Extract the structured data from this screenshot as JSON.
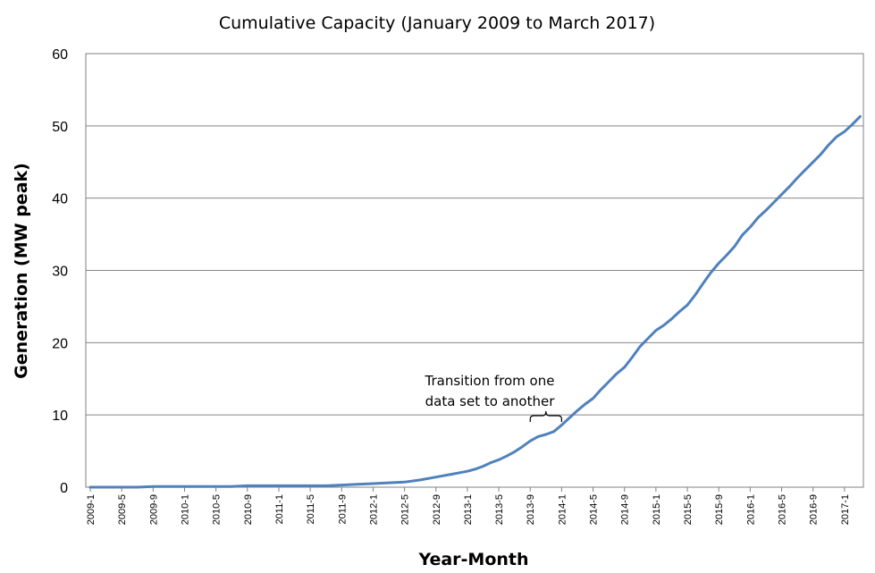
{
  "chart_data": {
    "type": "line",
    "title": "Cumulative Capacity (January 2009 to March 2017)",
    "xlabel": "Year-Month",
    "ylabel": "Generation (MW peak)",
    "ylim": [
      0,
      60
    ],
    "yticks": [
      0,
      10,
      20,
      30,
      40,
      50,
      60
    ],
    "grid": "horizontal",
    "xtick_labels": [
      "2009-1",
      "2009-5",
      "2009-9",
      "2010-1",
      "2010-5",
      "2010-9",
      "2011-1",
      "2011-5",
      "2011-9",
      "2012-1",
      "2012-5",
      "2012-9",
      "2013-1",
      "2013-5",
      "2013-9",
      "2014-1",
      "2014-5",
      "2014-9",
      "2015-1",
      "2015-5",
      "2015-9",
      "2016-1",
      "2016-5",
      "2016-9",
      "2017-1"
    ],
    "annotation": {
      "lines": [
        "Transition from one",
        "data set to another"
      ],
      "x_from": "2013-9",
      "x_to": "2014-1"
    },
    "series": [
      {
        "color": "#4f81bd",
        "x": [
          "2009-1",
          "2009-3",
          "2009-5",
          "2009-7",
          "2009-9",
          "2009-11",
          "2010-1",
          "2010-3",
          "2010-5",
          "2010-7",
          "2010-9",
          "2010-11",
          "2011-1",
          "2011-3",
          "2011-5",
          "2011-7",
          "2011-9",
          "2011-11",
          "2012-1",
          "2012-3",
          "2012-5",
          "2012-7",
          "2012-9",
          "2012-11",
          "2013-1",
          "2013-2",
          "2013-3",
          "2013-4",
          "2013-5",
          "2013-6",
          "2013-7",
          "2013-8",
          "2013-9",
          "2013-10",
          "2013-11",
          "2013-12",
          "2014-1",
          "2014-2",
          "2014-3",
          "2014-4",
          "2014-5",
          "2014-6",
          "2014-7",
          "2014-8",
          "2014-9",
          "2014-10",
          "2014-11",
          "2014-12",
          "2015-1",
          "2015-2",
          "2015-3",
          "2015-4",
          "2015-5",
          "2015-6",
          "2015-7",
          "2015-8",
          "2015-9",
          "2015-10",
          "2015-11",
          "2015-12",
          "2016-1",
          "2016-2",
          "2016-3",
          "2016-4",
          "2016-5",
          "2016-6",
          "2016-7",
          "2016-8",
          "2016-9",
          "2016-10",
          "2016-11",
          "2016-12",
          "2017-1",
          "2017-2",
          "2017-3"
        ],
        "y": [
          0.0,
          0.0,
          0.0,
          0.0,
          0.1,
          0.1,
          0.1,
          0.1,
          0.1,
          0.1,
          0.2,
          0.2,
          0.2,
          0.2,
          0.2,
          0.2,
          0.3,
          0.4,
          0.5,
          0.6,
          0.7,
          1.0,
          1.4,
          1.8,
          2.2,
          2.5,
          2.9,
          3.4,
          3.8,
          4.3,
          4.9,
          5.6,
          6.4,
          7.0,
          7.3,
          7.7,
          8.6,
          9.6,
          10.6,
          11.5,
          12.3,
          13.5,
          14.6,
          15.7,
          16.6,
          18.0,
          19.5,
          20.6,
          21.7,
          22.4,
          23.3,
          24.3,
          25.2,
          26.6,
          28.2,
          29.7,
          31.0,
          32.1,
          33.3,
          34.9,
          36.0,
          37.3,
          38.3,
          39.4,
          40.5,
          41.6,
          42.8,
          43.9,
          45.0,
          46.1,
          47.4,
          48.5,
          49.2,
          50.2,
          51.3
        ]
      }
    ]
  }
}
